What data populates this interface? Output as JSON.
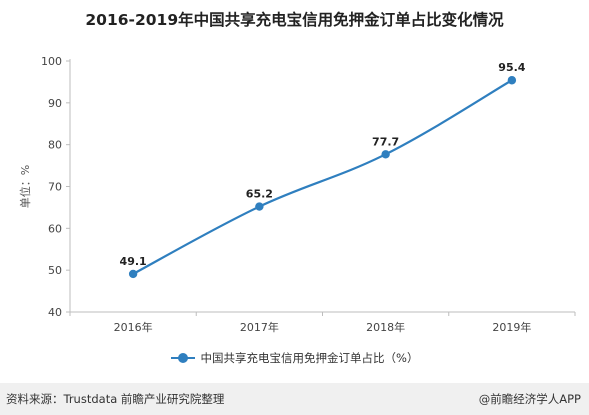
{
  "title": "2016-2019年中国共享充电宝信用免押金订单占比变化情况",
  "footer": {
    "source": "资料来源：Trustdata 前瞻产业研究院整理",
    "brand": "@前瞻经济学人APP"
  },
  "colors": {
    "series": "#2f7fbf",
    "axis": "#bdbdbd",
    "grid": "#e4e4e4"
  },
  "chart_data": {
    "type": "line",
    "title": "2016-2019年中国共享充电宝信用免押金订单占比变化情况",
    "categories": [
      "2016年",
      "2017年",
      "2018年",
      "2019年"
    ],
    "ylabel": "单位：%",
    "ylim": [
      40,
      100
    ],
    "yticks": [
      40,
      50,
      60,
      70,
      80,
      90,
      100
    ],
    "grid": false,
    "legend_position": "bottom",
    "series": [
      {
        "name": "中国共享充电宝信用免押金订单占比（%）",
        "values": [
          49.1,
          65.2,
          77.7,
          95.4
        ],
        "labels": [
          "49.1",
          "65.2",
          "77.7",
          "95.4"
        ]
      }
    ]
  }
}
